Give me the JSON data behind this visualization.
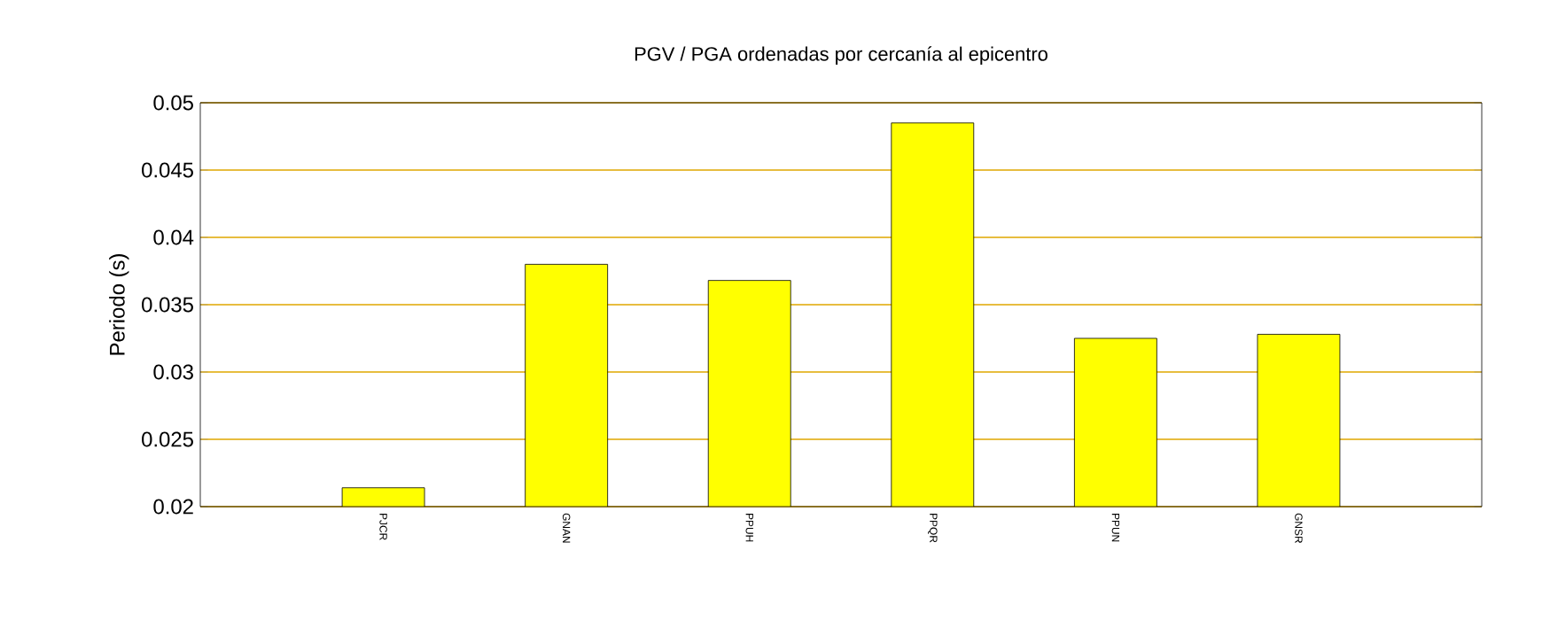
{
  "chart_data": {
    "type": "bar",
    "title": "PGV / PGA ordenadas por cercanía al epicentro",
    "ylabel": "Periodo (s)",
    "categories": [
      "PJCR",
      "GNAN",
      "PPUH",
      "PPQR",
      "PPUN",
      "GNSR"
    ],
    "values": [
      0.0214,
      0.038,
      0.0368,
      0.0485,
      0.0325,
      0.0328
    ],
    "color": "#ffff00",
    "ylim": [
      0.02,
      0.05
    ],
    "yticks": [
      0.02,
      0.025,
      0.03,
      0.035,
      0.04,
      0.045,
      0.05
    ],
    "grid": "y"
  }
}
